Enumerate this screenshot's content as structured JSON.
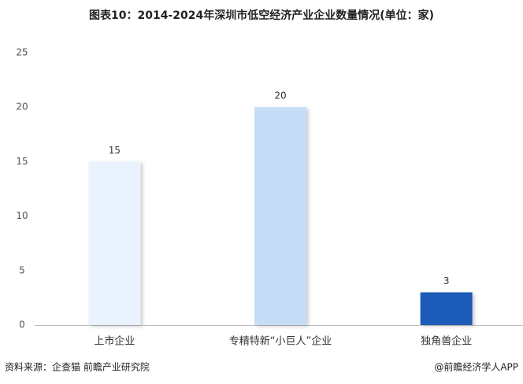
{
  "chart_data": {
    "type": "bar",
    "title": "图表10：2014-2024年深圳市低空经济产业企业数量情况(单位：家)",
    "categories": [
      "上市企业",
      "专精特新“小巨人”企业",
      "独角兽企业"
    ],
    "values": [
      15,
      20,
      3
    ],
    "colors": [
      "#eaf3fd",
      "#c6ddf8",
      "#1a5cb8"
    ],
    "ylim": [
      0,
      25
    ],
    "yticks": [
      0,
      5,
      10,
      15,
      20,
      25
    ],
    "grid": false,
    "source": "资料来源：企查猫 前瞻产业研究院",
    "credit": "@前瞻经济学人APP"
  }
}
